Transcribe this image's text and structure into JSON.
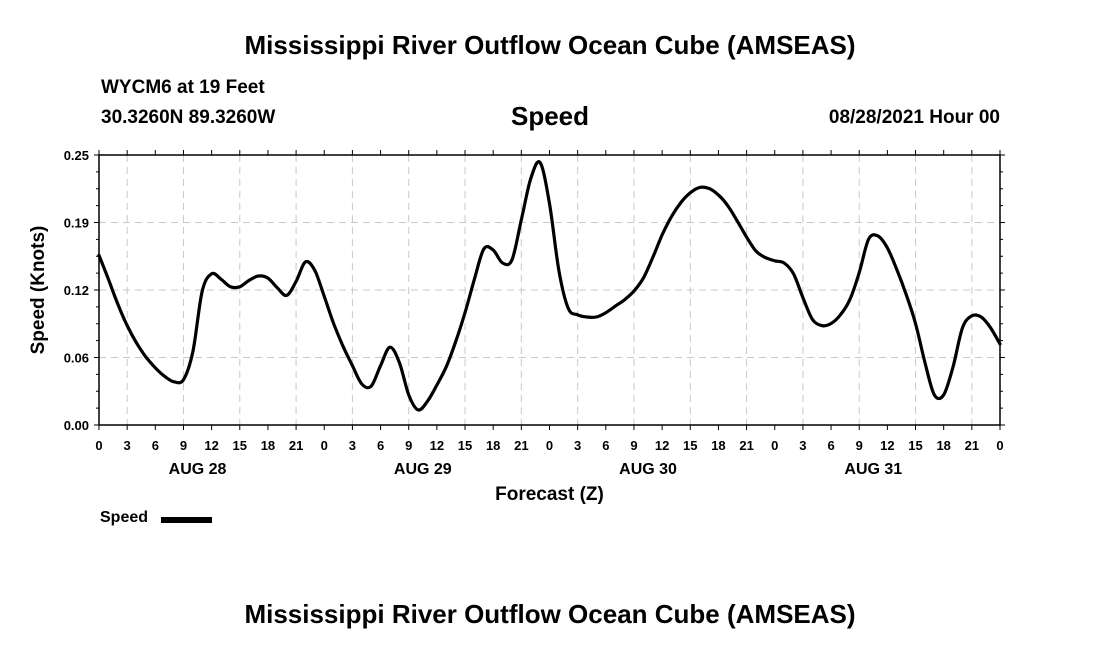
{
  "header": {
    "title": "Mississippi River Outflow Ocean Cube (AMSEAS)",
    "station": "WYCM6 at 19 Feet",
    "coords": "30.3260N  89.3260W",
    "chart_title": "Speed",
    "datetime": "08/28/2021 Hour 00"
  },
  "footer": {
    "title": "Mississippi River Outflow Ocean Cube (AMSEAS)"
  },
  "legend": {
    "label": "Speed"
  },
  "colors": {
    "line": "#000000",
    "grid": "#c8c8c8",
    "background": "#ffffff"
  },
  "chart_data": {
    "type": "line",
    "title": "Speed",
    "xlabel": "Forecast (Z)",
    "ylabel": "Speed (Knots)",
    "xlim": [
      0,
      96
    ],
    "ylim": [
      0,
      0.25
    ],
    "grid": true,
    "legend_position": "bottom-left",
    "y_ticks": [
      "0.00",
      "0.06",
      "0.12",
      "0.19",
      "0.25"
    ],
    "x_ticks": [
      "0",
      "3",
      "6",
      "9",
      "12",
      "15",
      "18",
      "21",
      "0",
      "3",
      "6",
      "9",
      "12",
      "15",
      "18",
      "21",
      "0",
      "3",
      "6",
      "9",
      "12",
      "15",
      "18",
      "21",
      "0",
      "3",
      "6",
      "9",
      "12",
      "15",
      "18",
      "21",
      "0"
    ],
    "day_labels": [
      "AUG 28",
      "AUG 29",
      "AUG 30",
      "AUG 31"
    ],
    "series": [
      {
        "name": "Speed",
        "x": [
          0,
          1,
          2,
          3,
          4,
          5,
          6,
          7,
          8,
          9,
          10,
          11,
          12,
          13,
          14,
          15,
          16,
          17,
          18,
          19,
          20,
          21,
          22,
          23,
          24,
          25,
          26,
          27,
          28,
          29,
          30,
          31,
          32,
          33,
          34,
          35,
          36,
          37,
          38,
          39,
          40,
          41,
          42,
          43,
          44,
          45,
          46,
          47,
          48,
          49,
          50,
          51,
          52,
          53,
          54,
          55,
          56,
          57,
          58,
          59,
          60,
          61,
          62,
          63,
          64,
          65,
          66,
          67,
          68,
          69,
          70,
          71,
          72,
          73,
          74,
          75,
          76,
          77,
          78,
          79,
          80,
          81,
          82,
          83,
          84,
          85,
          86,
          87,
          88,
          89,
          90,
          91,
          92,
          93,
          94,
          95,
          96
        ],
        "values": [
          0.157,
          0.135,
          0.112,
          0.092,
          0.076,
          0.063,
          0.053,
          0.045,
          0.04,
          0.042,
          0.068,
          0.124,
          0.14,
          0.135,
          0.128,
          0.128,
          0.134,
          0.138,
          0.136,
          0.127,
          0.12,
          0.133,
          0.151,
          0.143,
          0.119,
          0.094,
          0.073,
          0.055,
          0.038,
          0.036,
          0.055,
          0.072,
          0.058,
          0.028,
          0.014,
          0.022,
          0.037,
          0.054,
          0.077,
          0.104,
          0.135,
          0.163,
          0.162,
          0.15,
          0.153,
          0.19,
          0.228,
          0.243,
          0.205,
          0.143,
          0.108,
          0.102,
          0.1,
          0.1,
          0.104,
          0.11,
          0.116,
          0.124,
          0.136,
          0.155,
          0.176,
          0.193,
          0.206,
          0.215,
          0.22,
          0.219,
          0.213,
          0.203,
          0.189,
          0.174,
          0.161,
          0.155,
          0.152,
          0.15,
          0.14,
          0.118,
          0.098,
          0.092,
          0.094,
          0.102,
          0.116,
          0.141,
          0.172,
          0.175,
          0.164,
          0.144,
          0.121,
          0.094,
          0.058,
          0.028,
          0.028,
          0.054,
          0.09,
          0.101,
          0.1,
          0.09,
          0.075
        ]
      }
    ]
  }
}
